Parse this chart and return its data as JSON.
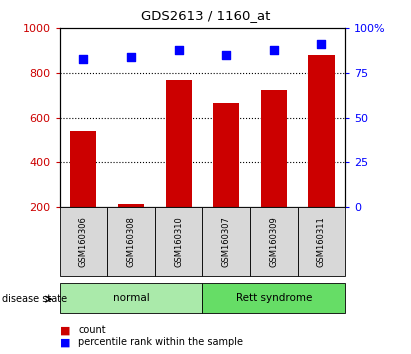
{
  "title": "GDS2613 / 1160_at",
  "samples": [
    "GSM160306",
    "GSM160308",
    "GSM160310",
    "GSM160307",
    "GSM160309",
    "GSM160311"
  ],
  "counts": [
    540,
    215,
    770,
    665,
    725,
    880
  ],
  "percentile_ranks": [
    83,
    84,
    88,
    85,
    88,
    91
  ],
  "group_colors_list": [
    "#90EE90",
    "#90EE90",
    "#90EE90",
    "#66CC66",
    "#66CC66",
    "#66CC66"
  ],
  "bar_color": "#CC0000",
  "dot_color": "#0000FF",
  "ylim_left": [
    200,
    1000
  ],
  "ylim_right": [
    0,
    100
  ],
  "yticks_left": [
    200,
    400,
    600,
    800,
    1000
  ],
  "yticks_right": [
    0,
    25,
    50,
    75,
    100
  ],
  "ytick_labels_right": [
    "0",
    "25",
    "50",
    "75",
    "100%"
  ],
  "grid_lines": [
    400,
    600,
    800
  ],
  "sample_box_color": "#d8d8d8",
  "normal_color": "#aaeaaa",
  "rett_color": "#66dd66",
  "left_tick_color": "#CC0000",
  "right_tick_color": "#0000FF",
  "bar_bottom": 200
}
